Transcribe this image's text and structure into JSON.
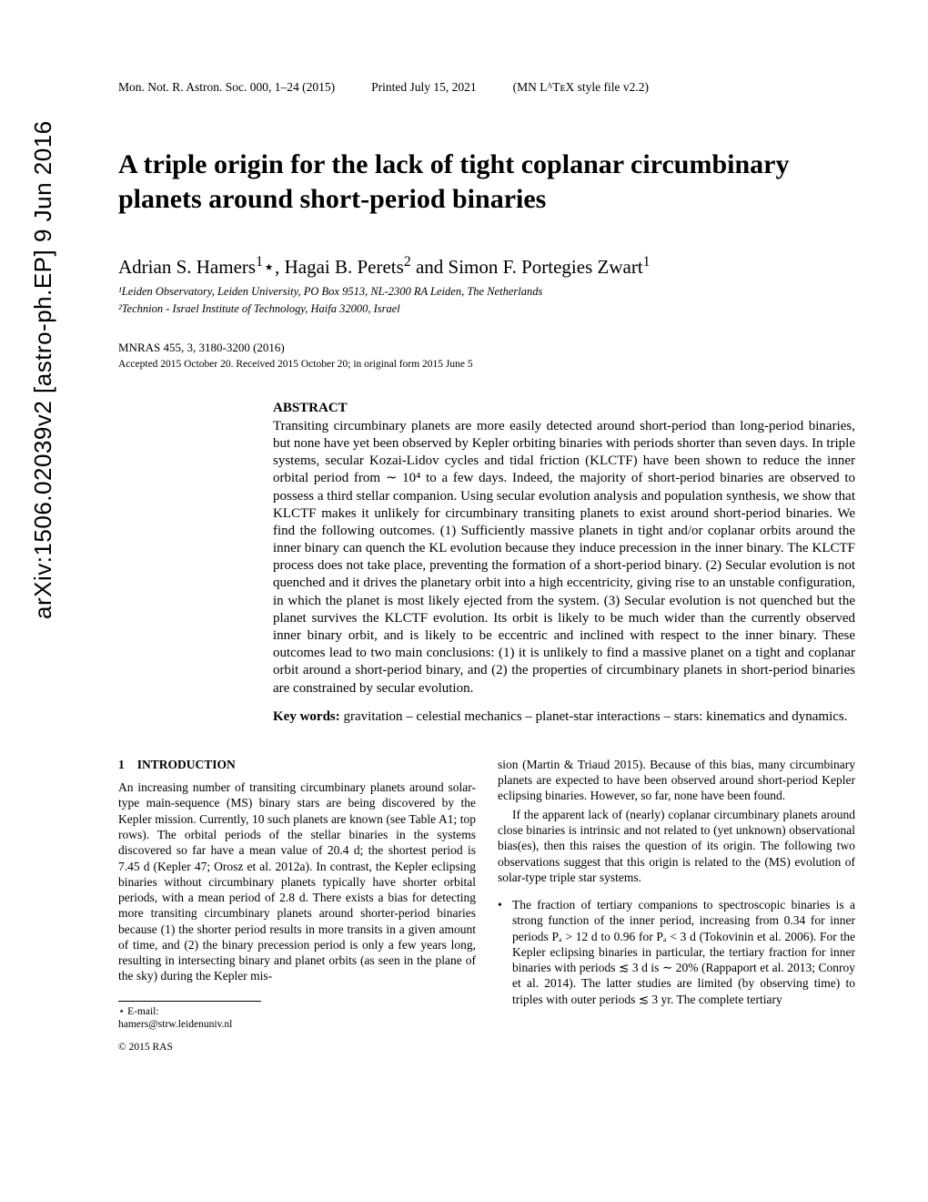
{
  "arxiv_stamp": "arXiv:1506.02039v2  [astro-ph.EP]  9 Jun 2016",
  "header": {
    "journal": "Mon. Not. R. Astron. Soc. 000, 1–24 (2015)",
    "printed": "Printed July 15, 2021",
    "style": "(MN LᴬTᴇX style file v2.2)"
  },
  "title": "A triple origin for the lack of tight coplanar circumbinary planets around short-period binaries",
  "authors_html": "Adrian S. Hamers<sup>1</sup>⋆, Hagai B. Perets<sup>2</sup> and Simon F. Portegies Zwart<sup>1</sup>",
  "affiliations": [
    "¹Leiden Observatory, Leiden University, PO Box 9513, NL-2300 RA Leiden, The Netherlands",
    "²Technion - Israel Institute of Technology, Haifa 32000, Israel"
  ],
  "pubinfo": "MNRAS 455, 3, 3180-3200 (2016)",
  "accepted": "Accepted 2015 October 20. Received 2015 October 20; in original form 2015 June 5",
  "abstract": {
    "heading": "ABSTRACT",
    "text": "Transiting circumbinary planets are more easily detected around short-period than long-period binaries, but none have yet been observed by Kepler orbiting binaries with periods shorter than seven days. In triple systems, secular Kozai-Lidov cycles and tidal friction (KLCTF) have been shown to reduce the inner orbital period from ∼ 10⁴ to a few days. Indeed, the majority of short-period binaries are observed to possess a third stellar companion. Using secular evolution analysis and population synthesis, we show that KLCTF makes it unlikely for circumbinary transiting planets to exist around short-period binaries. We find the following outcomes. (1) Sufficiently massive planets in tight and/or coplanar orbits around the inner binary can quench the KL evolution because they induce precession in the inner binary. The KLCTF process does not take place, preventing the formation of a short-period binary. (2) Secular evolution is not quenched and it drives the planetary orbit into a high eccentricity, giving rise to an unstable configuration, in which the planet is most likely ejected from the system. (3) Secular evolution is not quenched but the planet survives the KLCTF evolution. Its orbit is likely to be much wider than the currently observed inner binary orbit, and is likely to be eccentric and inclined with respect to the inner binary. These outcomes lead to two main conclusions: (1) it is unlikely to find a massive planet on a tight and coplanar orbit around a short-period binary, and (2) the properties of circumbinary planets in short-period binaries are constrained by secular evolution.",
    "keywords_label": "Key words:",
    "keywords": "gravitation – celestial mechanics – planet-star interactions – stars: kinematics and dynamics."
  },
  "section1": {
    "num": "1",
    "title": "INTRODUCTION",
    "left_p1": "An increasing number of transiting circumbinary planets around solar-type main-sequence (MS) binary stars are being discovered by the Kepler mission. Currently, 10 such planets are known (see Table A1; top rows). The orbital periods of the stellar binaries in the systems discovered so far have a mean value of 20.4 d; the shortest period is 7.45 d (Kepler 47; Orosz et al. 2012a). In contrast, the Kepler eclipsing binaries without circumbinary planets typically have shorter orbital periods, with a mean period of 2.8 d. There exists a bias for detecting more transiting circumbinary planets around shorter-period binaries because (1) the shorter period results in more transits in a given amount of time, and (2) the binary precession period is only a few years long, resulting in intersecting binary and planet orbits (as seen in the plane of the sky) during the Kepler mis-",
    "right_p1": "sion (Martin & Triaud 2015). Because of this bias, many circumbinary planets are expected to have been observed around short-period Kepler eclipsing binaries. However, so far, none have been found.",
    "right_p2": "If the apparent lack of (nearly) coplanar circumbinary planets around close binaries is intrinsic and not related to (yet unknown) observational bias(es), then this raises the question of its origin. The following two observations suggest that this origin is related to the (MS) evolution of solar-type triple star systems.",
    "right_bullet": "The fraction of tertiary companions to spectroscopic binaries is a strong function of the inner period, increasing from 0.34 for inner periods Pₐ > 12 d to 0.96 for Pₐ < 3 d (Tokovinin et al. 2006). For the Kepler eclipsing binaries in particular, the tertiary fraction for inner binaries with periods ≲ 3 d is ∼ 20% (Rappaport et al. 2013; Conroy et al. 2014). The latter studies are limited (by observing time) to triples with outer periods ≲ 3 yr. The complete tertiary"
  },
  "footnote": "⋆ E-mail: hamers@strw.leidenuniv.nl",
  "copyright": "© 2015 RAS"
}
